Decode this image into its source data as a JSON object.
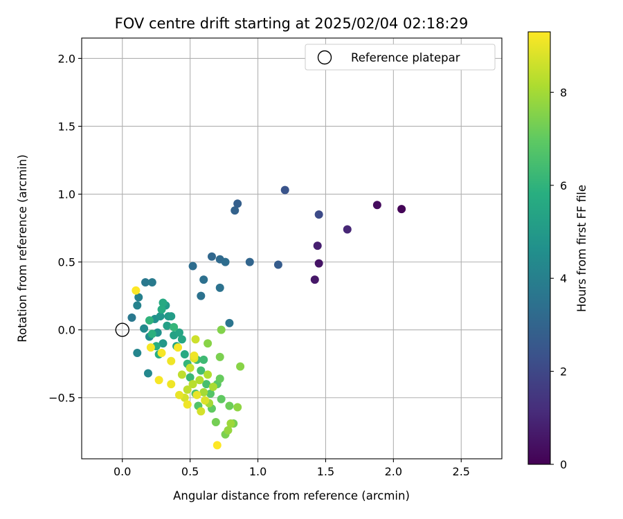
{
  "chart_data": {
    "type": "scatter",
    "title": "FOV centre drift starting at 2025/02/04 02:18:29",
    "xlabel": "Angular distance from reference (arcmin)",
    "ylabel": "Rotation from reference (arcmin)",
    "xlim": [
      -0.3,
      2.8
    ],
    "ylim": [
      -0.95,
      2.15
    ],
    "xticks": [
      0.0,
      0.5,
      1.0,
      1.5,
      2.0,
      2.5
    ],
    "xtick_labels": [
      "0.0",
      "0.5",
      "1.0",
      "1.5",
      "2.0",
      "2.5"
    ],
    "yticks": [
      -0.5,
      0.0,
      0.5,
      1.0,
      1.5,
      2.0
    ],
    "ytick_labels": [
      "−0.5",
      "0.0",
      "0.5",
      "1.0",
      "1.5",
      "2.0"
    ],
    "grid": true,
    "legend": {
      "position": "top-right",
      "entries": [
        {
          "label": "Reference platepar",
          "marker": "open-circle",
          "x": 0.0,
          "y": 0.0
        }
      ]
    },
    "colorbar": {
      "label": "Hours from first FF file",
      "colormap": "viridis",
      "range": [
        0,
        9.3
      ],
      "ticks": [
        0,
        2,
        4,
        6,
        8
      ],
      "tick_labels": [
        "0",
        "2",
        "4",
        "6",
        "8"
      ]
    },
    "points": [
      {
        "x": 2.06,
        "y": 0.89,
        "c": 0.1
      },
      {
        "x": 1.88,
        "y": 0.92,
        "c": 0.3
      },
      {
        "x": 1.45,
        "y": 0.49,
        "c": 0.5
      },
      {
        "x": 1.42,
        "y": 0.37,
        "c": 0.6
      },
      {
        "x": 1.44,
        "y": 0.62,
        "c": 0.8
      },
      {
        "x": 1.66,
        "y": 0.74,
        "c": 1.0
      },
      {
        "x": 1.45,
        "y": 0.85,
        "c": 2.1
      },
      {
        "x": 1.2,
        "y": 1.03,
        "c": 2.4
      },
      {
        "x": 1.15,
        "y": 0.48,
        "c": 2.7
      },
      {
        "x": 0.85,
        "y": 0.93,
        "c": 2.8
      },
      {
        "x": 0.83,
        "y": 0.88,
        "c": 2.9
      },
      {
        "x": 0.94,
        "y": 0.5,
        "c": 3.0
      },
      {
        "x": 0.66,
        "y": 0.54,
        "c": 3.1
      },
      {
        "x": 0.72,
        "y": 0.52,
        "c": 3.2
      },
      {
        "x": 0.76,
        "y": 0.5,
        "c": 3.3
      },
      {
        "x": 0.52,
        "y": 0.47,
        "c": 3.3
      },
      {
        "x": 0.6,
        "y": 0.37,
        "c": 3.4
      },
      {
        "x": 0.72,
        "y": 0.31,
        "c": 3.5
      },
      {
        "x": 0.58,
        "y": 0.25,
        "c": 3.5
      },
      {
        "x": 0.79,
        "y": 0.05,
        "c": 3.6
      },
      {
        "x": 0.07,
        "y": 0.09,
        "c": 3.7
      },
      {
        "x": 0.17,
        "y": 0.35,
        "c": 3.7
      },
      {
        "x": 0.22,
        "y": 0.35,
        "c": 3.8
      },
      {
        "x": 0.12,
        "y": 0.24,
        "c": 4.0
      },
      {
        "x": 0.11,
        "y": 0.18,
        "c": 4.1
      },
      {
        "x": 0.11,
        "y": -0.17,
        "c": 4.2
      },
      {
        "x": 0.19,
        "y": -0.32,
        "c": 4.3
      },
      {
        "x": 0.16,
        "y": 0.01,
        "c": 4.4
      },
      {
        "x": 0.2,
        "y": -0.05,
        "c": 4.5
      },
      {
        "x": 0.24,
        "y": 0.08,
        "c": 4.6
      },
      {
        "x": 0.26,
        "y": -0.02,
        "c": 4.7
      },
      {
        "x": 0.28,
        "y": 0.1,
        "c": 4.8
      },
      {
        "x": 0.3,
        "y": -0.1,
        "c": 4.9
      },
      {
        "x": 0.32,
        "y": 0.18,
        "c": 5.0
      },
      {
        "x": 0.34,
        "y": 0.1,
        "c": 5.0
      },
      {
        "x": 0.36,
        "y": 0.1,
        "c": 5.1
      },
      {
        "x": 0.33,
        "y": 0.03,
        "c": 5.2
      },
      {
        "x": 0.38,
        "y": -0.04,
        "c": 5.3
      },
      {
        "x": 0.4,
        "y": -0.12,
        "c": 5.4
      },
      {
        "x": 0.42,
        "y": -0.02,
        "c": 5.4
      },
      {
        "x": 0.44,
        "y": -0.07,
        "c": 5.5
      },
      {
        "x": 0.46,
        "y": -0.18,
        "c": 5.6
      },
      {
        "x": 0.3,
        "y": 0.2,
        "c": 5.6
      },
      {
        "x": 0.29,
        "y": 0.15,
        "c": 5.7
      },
      {
        "x": 0.27,
        "y": -0.18,
        "c": 5.8
      },
      {
        "x": 0.25,
        "y": -0.12,
        "c": 5.8
      },
      {
        "x": 0.22,
        "y": -0.03,
        "c": 5.9
      },
      {
        "x": 0.2,
        "y": 0.07,
        "c": 6.0
      },
      {
        "x": 0.38,
        "y": 0.02,
        "c": 6.1
      },
      {
        "x": 0.48,
        "y": -0.25,
        "c": 6.1
      },
      {
        "x": 0.5,
        "y": -0.35,
        "c": 6.2
      },
      {
        "x": 0.55,
        "y": -0.22,
        "c": 6.3
      },
      {
        "x": 0.6,
        "y": -0.22,
        "c": 6.3
      },
      {
        "x": 0.58,
        "y": -0.3,
        "c": 6.4
      },
      {
        "x": 0.62,
        "y": -0.4,
        "c": 6.5
      },
      {
        "x": 0.54,
        "y": -0.47,
        "c": 6.6
      },
      {
        "x": 0.56,
        "y": -0.56,
        "c": 6.7
      },
      {
        "x": 0.65,
        "y": -0.47,
        "c": 6.8
      },
      {
        "x": 0.7,
        "y": -0.4,
        "c": 6.9
      },
      {
        "x": 0.73,
        "y": -0.51,
        "c": 7.0
      },
      {
        "x": 0.66,
        "y": -0.58,
        "c": 7.0
      },
      {
        "x": 0.72,
        "y": -0.36,
        "c": 7.1
      },
      {
        "x": 0.79,
        "y": -0.56,
        "c": 7.2
      },
      {
        "x": 0.82,
        "y": -0.69,
        "c": 7.3
      },
      {
        "x": 0.69,
        "y": -0.68,
        "c": 7.3
      },
      {
        "x": 0.76,
        "y": -0.77,
        "c": 7.4
      },
      {
        "x": 0.72,
        "y": -0.2,
        "c": 7.4
      },
      {
        "x": 0.73,
        "y": 0.0,
        "c": 7.5
      },
      {
        "x": 0.63,
        "y": -0.1,
        "c": 7.6
      },
      {
        "x": 0.87,
        "y": -0.27,
        "c": 7.6
      },
      {
        "x": 0.85,
        "y": -0.57,
        "c": 7.7
      },
      {
        "x": 0.78,
        "y": -0.74,
        "c": 7.8
      },
      {
        "x": 0.8,
        "y": -0.69,
        "c": 7.9
      },
      {
        "x": 0.64,
        "y": -0.54,
        "c": 8.0
      },
      {
        "x": 0.6,
        "y": -0.46,
        "c": 8.0
      },
      {
        "x": 0.67,
        "y": -0.42,
        "c": 8.1
      },
      {
        "x": 0.63,
        "y": -0.33,
        "c": 8.2
      },
      {
        "x": 0.57,
        "y": -0.37,
        "c": 8.2
      },
      {
        "x": 0.52,
        "y": -0.4,
        "c": 8.3
      },
      {
        "x": 0.48,
        "y": -0.44,
        "c": 8.4
      },
      {
        "x": 0.44,
        "y": -0.33,
        "c": 8.4
      },
      {
        "x": 0.5,
        "y": -0.28,
        "c": 8.5
      },
      {
        "x": 0.54,
        "y": -0.07,
        "c": 8.6
      },
      {
        "x": 0.46,
        "y": -0.5,
        "c": 8.7
      },
      {
        "x": 0.58,
        "y": -0.6,
        "c": 8.7
      },
      {
        "x": 0.61,
        "y": -0.52,
        "c": 8.8
      },
      {
        "x": 0.53,
        "y": -0.21,
        "c": 8.9
      },
      {
        "x": 0.55,
        "y": -0.48,
        "c": 9.0
      },
      {
        "x": 0.42,
        "y": -0.48,
        "c": 9.0
      },
      {
        "x": 0.48,
        "y": -0.55,
        "c": 9.1
      },
      {
        "x": 0.36,
        "y": -0.23,
        "c": 9.1
      },
      {
        "x": 0.36,
        "y": -0.4,
        "c": 9.1
      },
      {
        "x": 0.27,
        "y": -0.37,
        "c": 9.2
      },
      {
        "x": 0.21,
        "y": -0.13,
        "c": 9.2
      },
      {
        "x": 0.29,
        "y": -0.17,
        "c": 9.2
      },
      {
        "x": 0.1,
        "y": 0.29,
        "c": 9.3
      },
      {
        "x": 0.7,
        "y": -0.85,
        "c": 9.3
      },
      {
        "x": 0.41,
        "y": -0.13,
        "c": 9.2
      },
      {
        "x": 0.53,
        "y": -0.19,
        "c": 9.1
      }
    ]
  }
}
